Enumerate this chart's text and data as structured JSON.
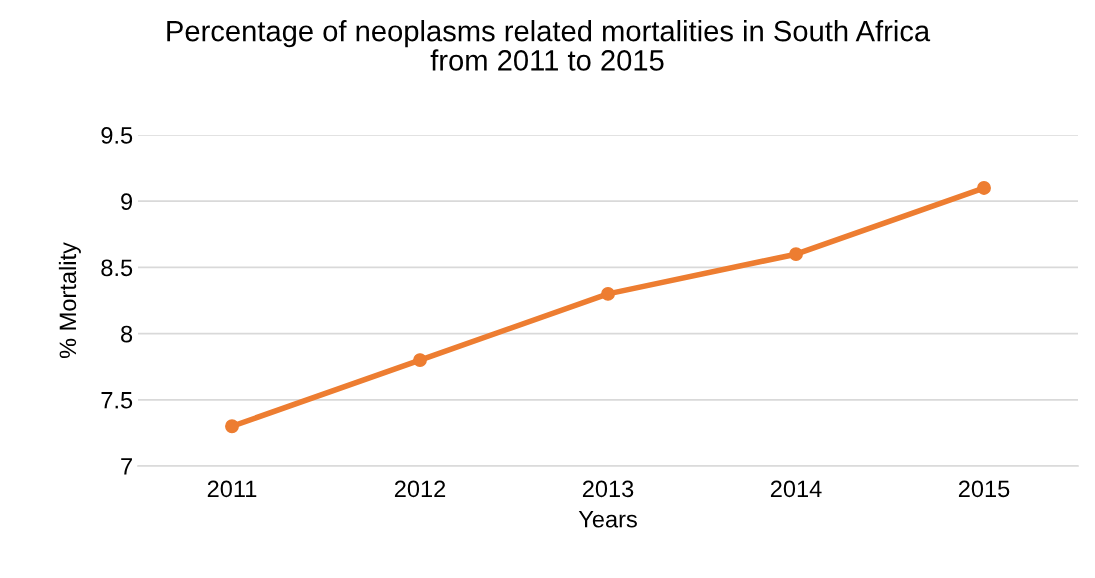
{
  "chart_data": {
    "type": "line",
    "title": "Percentage of neoplasms related mortalities in South Africa\nfrom 2011 to 2015",
    "xlabel": "Years",
    "ylabel": "% Mortality",
    "categories": [
      "2011",
      "2012",
      "2013",
      "2014",
      "2015"
    ],
    "series": [
      {
        "color": "#ed7d31",
        "values": [
          7.3,
          7.8,
          8.3,
          8.6,
          9.1
        ]
      }
    ],
    "ylim": [
      7,
      9.5
    ],
    "yticks": [
      {
        "value": 7,
        "label": "7"
      },
      {
        "value": 7.5,
        "label": "7.5"
      },
      {
        "value": 8,
        "label": "8"
      },
      {
        "value": 8.5,
        "label": "8.5"
      },
      {
        "value": 9,
        "label": "9"
      },
      {
        "value": 9.5,
        "label": "9.5"
      }
    ],
    "grid": "y",
    "marker": "circle",
    "line_style": "solid"
  }
}
